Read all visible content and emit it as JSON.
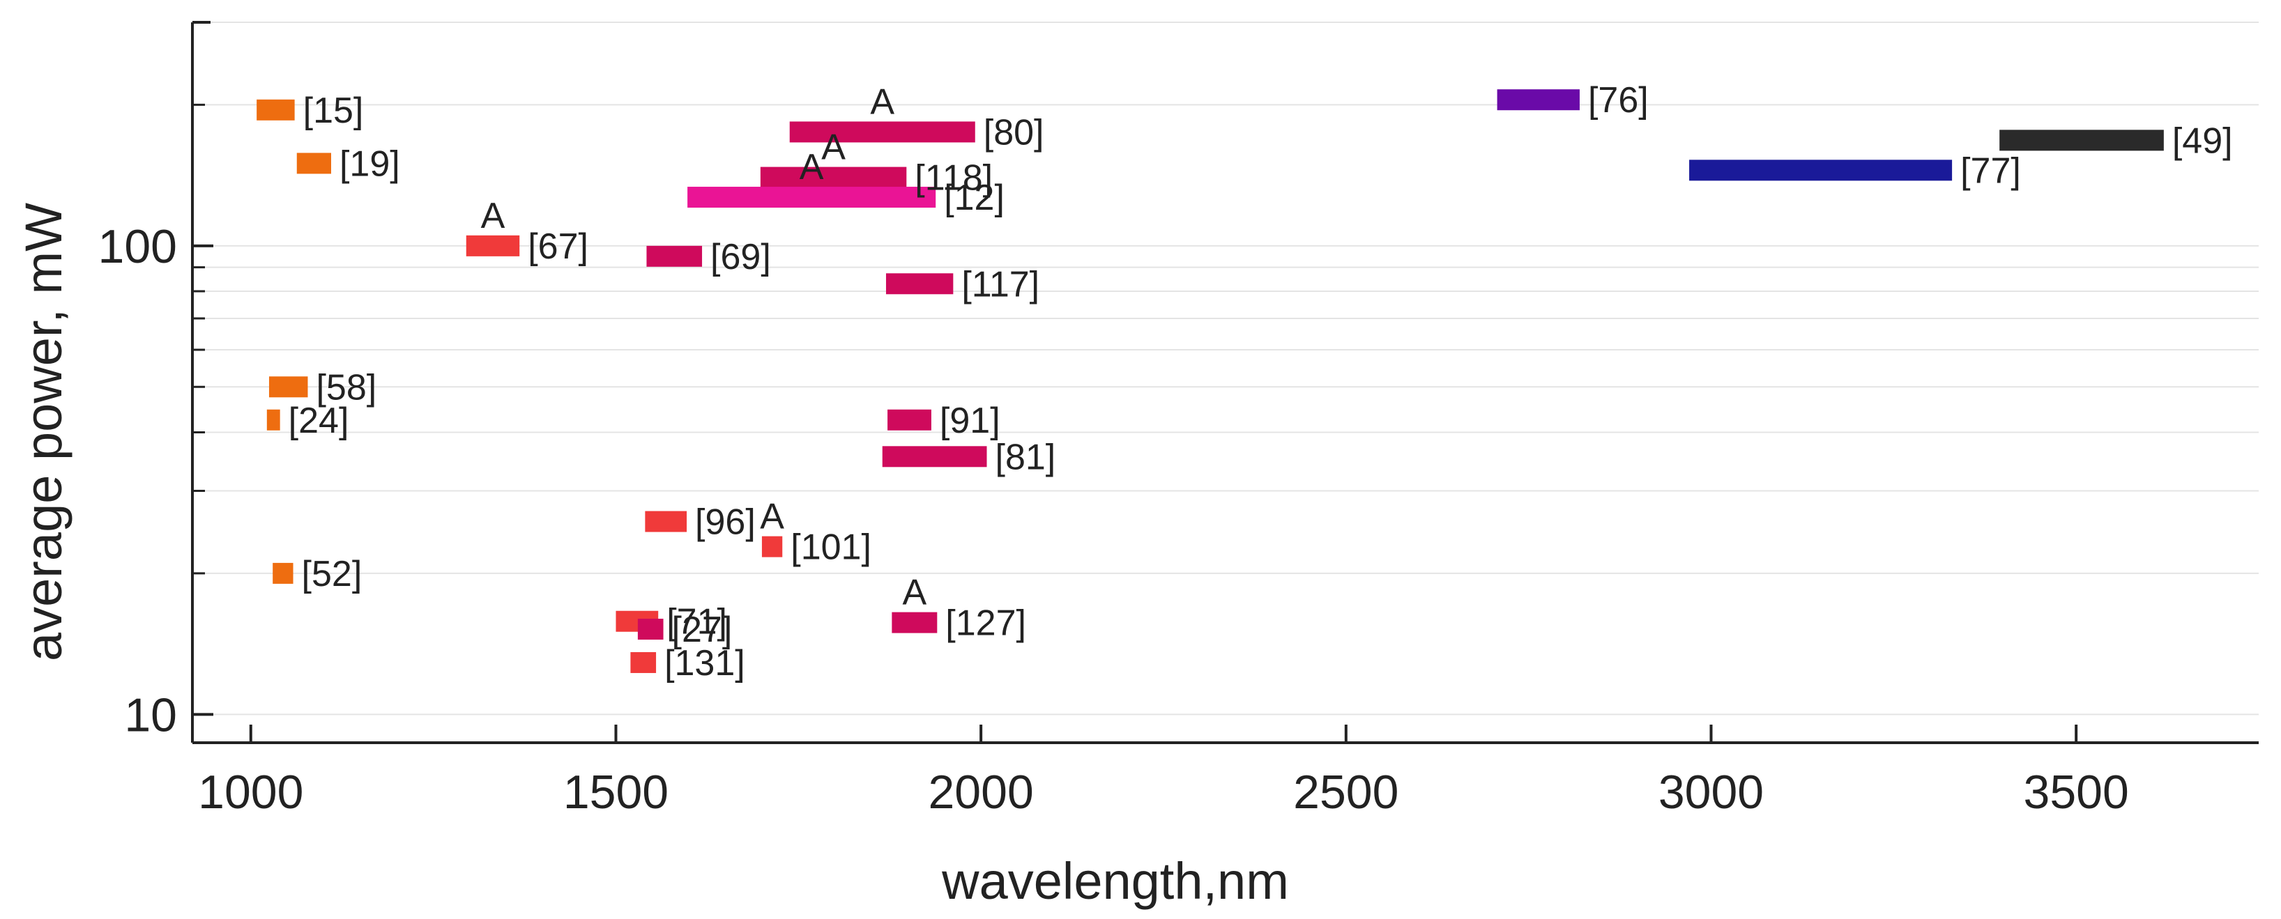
{
  "chart_data": {
    "type": "range-bar",
    "title": "",
    "xlabel": "wavelength,nm",
    "ylabel": "average power, mW",
    "xlim": [
      920,
      3750
    ],
    "ylim": [
      8.7,
      300
    ],
    "yscale": "log",
    "grid": "horizontal",
    "xticks": [
      1000,
      1500,
      2000,
      2500,
      3000,
      3500
    ],
    "yticks": [
      10,
      100
    ],
    "xtick_labels": [
      "1000",
      "1500",
      "2000",
      "2500",
      "3000",
      "3500"
    ],
    "ytick_labels": [
      "10",
      "100"
    ],
    "colors": {
      "orange": "#ee6d10",
      "red": "#f03a3a",
      "crimson": "#cf0a5c",
      "magenta": "#ea1495",
      "purple": "#6a0aa8",
      "navy": "#1a1a99",
      "black": "#2a2a2a"
    },
    "bars": [
      {
        "ref": "[15]",
        "x_start": 1008,
        "x_end": 1060,
        "y": 195,
        "color": "#ee6d10",
        "note": ""
      },
      {
        "ref": "[19]",
        "x_start": 1063,
        "x_end": 1110,
        "y": 150,
        "color": "#ee6d10",
        "note": ""
      },
      {
        "ref": "[67]",
        "x_start": 1295,
        "x_end": 1368,
        "y": 100,
        "color": "#f03a3a",
        "note": "A"
      },
      {
        "ref": "[69]",
        "x_start": 1542,
        "x_end": 1618,
        "y": 95,
        "color": "#cf0a5c",
        "note": ""
      },
      {
        "ref": "[80]",
        "x_start": 1738,
        "x_end": 1992,
        "y": 175,
        "color": "#cf0a5c",
        "note": "A"
      },
      {
        "ref": "[118]",
        "x_start": 1698,
        "x_end": 1898,
        "y": 140,
        "color": "#cf0a5c",
        "note": "A"
      },
      {
        "ref": "[12]",
        "x_start": 1598,
        "x_end": 1938,
        "y": 127,
        "color": "#ea1495",
        "note": "A"
      },
      {
        "ref": "[117]",
        "x_start": 1870,
        "x_end": 1962,
        "y": 83,
        "color": "#cf0a5c",
        "note": ""
      },
      {
        "ref": "[58]",
        "x_start": 1025,
        "x_end": 1078,
        "y": 50,
        "color": "#ee6d10",
        "note": ""
      },
      {
        "ref": "[24]",
        "x_start": 1022,
        "x_end": 1040,
        "y": 42.5,
        "color": "#ee6d10",
        "note": ""
      },
      {
        "ref": "[91]",
        "x_start": 1872,
        "x_end": 1932,
        "y": 42.5,
        "color": "#cf0a5c",
        "note": ""
      },
      {
        "ref": "[81]",
        "x_start": 1865,
        "x_end": 2008,
        "y": 35.5,
        "color": "#cf0a5c",
        "note": ""
      },
      {
        "ref": "[96]",
        "x_start": 1540,
        "x_end": 1597,
        "y": 25.8,
        "color": "#f03a3a",
        "note": ""
      },
      {
        "ref": "[101]",
        "x_start": 1700,
        "x_end": 1728,
        "y": 22.8,
        "color": "#f03a3a",
        "note": "A"
      },
      {
        "ref": "[52]",
        "x_start": 1030,
        "x_end": 1058,
        "y": 20.0,
        "color": "#ee6d10",
        "note": ""
      },
      {
        "ref": "[71]",
        "x_start": 1500,
        "x_end": 1558,
        "y": 15.8,
        "color": "#f03a3a",
        "note": ""
      },
      {
        "ref": "[27]",
        "x_start": 1530,
        "x_end": 1565,
        "y": 15.2,
        "color": "#cf0a5c",
        "note": ""
      },
      {
        "ref": "[127]",
        "x_start": 1878,
        "x_end": 1940,
        "y": 15.7,
        "color": "#cf0a5c",
        "note": "A"
      },
      {
        "ref": "[131]",
        "x_start": 1520,
        "x_end": 1555,
        "y": 12.9,
        "color": "#f03a3a",
        "note": ""
      },
      {
        "ref": "[76]",
        "x_start": 2707,
        "x_end": 2820,
        "y": 205,
        "color": "#6a0aa8",
        "note": ""
      },
      {
        "ref": "[77]",
        "x_start": 2970,
        "x_end": 3330,
        "y": 145,
        "color": "#1a1a99",
        "note": ""
      },
      {
        "ref": "[49]",
        "x_start": 3395,
        "x_end": 3620,
        "y": 168,
        "color": "#2a2a2a",
        "note": ""
      }
    ]
  }
}
